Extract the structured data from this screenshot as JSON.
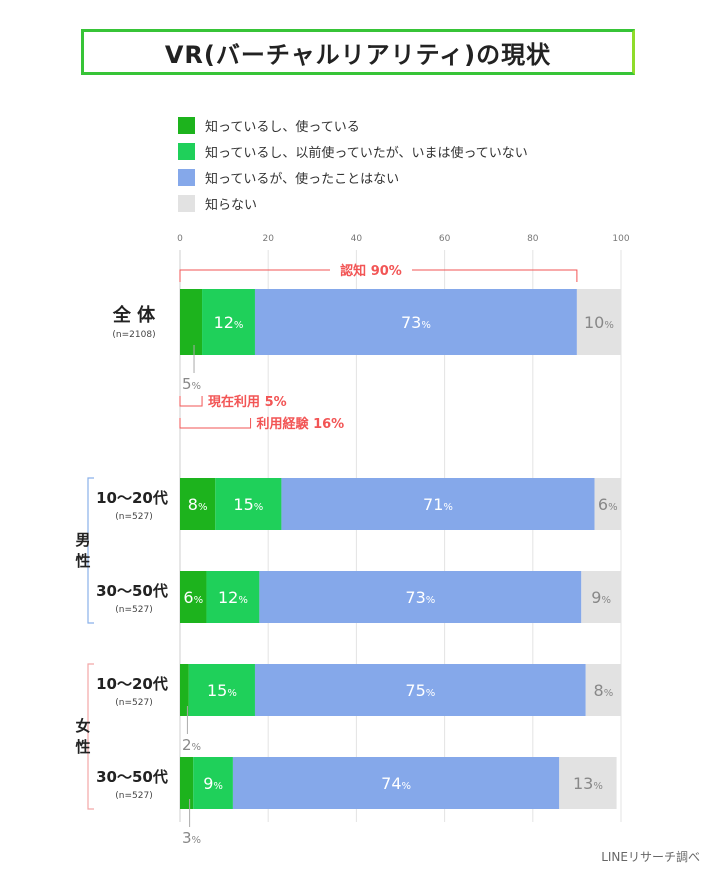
{
  "title": "VR(バーチャルリアリティ)の現状",
  "source": "LINEリサーチ調べ",
  "colors": {
    "use_now": "#1db31d",
    "used_before": "#1fd05a",
    "know_not_used": "#85a8ea",
    "dont_know": "#e2e2e2",
    "annotation": "#f25555",
    "male_bracket": "#8ab1ea",
    "female_bracket": "#f2a6a6"
  },
  "legend": [
    {
      "label": "知っているし、使っている",
      "color": "#1db31d"
    },
    {
      "label": "知っているし、以前使っていたが、いまは使っていない",
      "color": "#1fd05a"
    },
    {
      "label": "知っているが、使ったことはない",
      "color": "#85a8ea"
    },
    {
      "label": "知らない",
      "color": "#e2e2e2"
    }
  ],
  "groups": {
    "male": "男性",
    "female": "女性"
  },
  "annotations": {
    "awareness": "認知 90%",
    "current_use": "現在利用 5%",
    "usage_experience": "利用経験 16%"
  },
  "chart_data": {
    "type": "bar",
    "orientation": "horizontal",
    "stacked": true,
    "xlim": [
      0,
      100
    ],
    "ticks": [
      "0",
      "20",
      "40",
      "60",
      "80",
      "100"
    ],
    "categories": [
      {
        "label": "全 体",
        "n": "(n=2108)"
      },
      {
        "label": "10～20代",
        "n": "(n=527)",
        "group": "男性"
      },
      {
        "label": "30～50代",
        "n": "(n=527)",
        "group": "男性"
      },
      {
        "label": "10～20代",
        "n": "(n=527)",
        "group": "女性"
      },
      {
        "label": "30～50代",
        "n": "(n=527)",
        "group": "女性"
      }
    ],
    "series": [
      {
        "name": "知っているし、使っている",
        "values": [
          5,
          8,
          6,
          2,
          3
        ],
        "labels": [
          "5",
          "8",
          "6",
          "2",
          "3"
        ]
      },
      {
        "name": "知っているし、以前使っていたが、いまは使っていない",
        "values": [
          12,
          15,
          12,
          15,
          9
        ],
        "labels": [
          "12",
          "15",
          "12",
          "15",
          "9"
        ]
      },
      {
        "name": "知っているが、使ったことはない",
        "values": [
          73,
          71,
          73,
          75,
          74
        ],
        "labels": [
          "73",
          "71",
          "73",
          "75",
          "74"
        ]
      },
      {
        "name": "知らない",
        "values": [
          10,
          6,
          9,
          8,
          13
        ],
        "labels": [
          "10",
          "6",
          "9",
          "8",
          "13"
        ]
      }
    ],
    "unit": "%"
  }
}
